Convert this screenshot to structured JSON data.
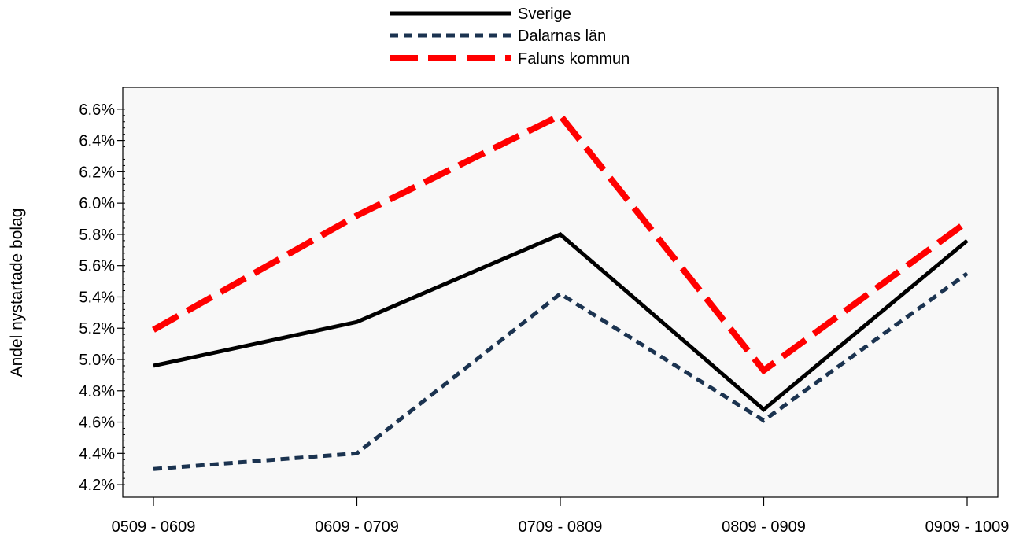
{
  "chart_data": {
    "type": "line",
    "categories": [
      "0509 - 0609",
      "0609 - 0709",
      "0709 - 0809",
      "0809 - 0909",
      "0909 - 1009"
    ],
    "series": [
      {
        "name": "Sverige",
        "values": [
          4.96,
          5.24,
          5.8,
          4.68,
          5.76
        ],
        "color": "#000000",
        "style": "solid"
      },
      {
        "name": "Dalarnas län",
        "values": [
          4.3,
          4.4,
          5.42,
          4.61,
          5.55
        ],
        "color": "#1b3350",
        "style": "dotted"
      },
      {
        "name": "Faluns kommun",
        "values": [
          5.19,
          5.92,
          6.56,
          4.93,
          5.88
        ],
        "color": "#ff0000",
        "style": "dashed"
      }
    ],
    "ylabel": "Andel nystartade bolag",
    "xlabel": "",
    "ylim": [
      4.12,
      6.74
    ],
    "yticks": [
      "4.2%",
      "4.4%",
      "4.6%",
      "4.8%",
      "5.0%",
      "5.2%",
      "5.4%",
      "5.6%",
      "5.8%",
      "6.0%",
      "6.2%",
      "6.4%",
      "6.6%"
    ],
    "ytick_values": [
      4.2,
      4.4,
      4.6,
      4.8,
      5.0,
      5.2,
      5.4,
      5.6,
      5.8,
      6.0,
      6.2,
      6.4,
      6.6
    ],
    "grid": false,
    "legend_position": "top-center",
    "plot_background": "#f8f8f8"
  }
}
